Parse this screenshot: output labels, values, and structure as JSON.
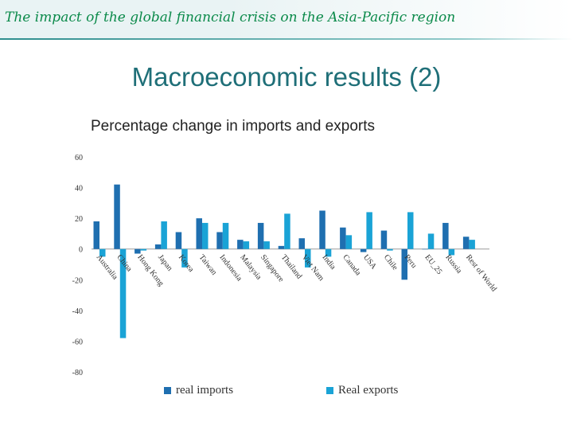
{
  "header": {
    "title": "The impact of the global financial crisis on the Asia-Pacific region"
  },
  "slide": {
    "title": "Macroeconomic results (2)"
  },
  "colors": {
    "real_imports": "#1f6fb0",
    "real_exports": "#1aa3d6",
    "accent": "#1f6f78"
  },
  "chart_data": {
    "type": "bar",
    "title": "Percentage change in imports and exports",
    "xlabel": "",
    "ylabel": "",
    "ylim": [
      -80,
      60
    ],
    "yticks": [
      60,
      40,
      20,
      0,
      -20,
      -40,
      -60,
      -80
    ],
    "grid": false,
    "legend": "bottom",
    "categories": [
      "Australia",
      "China",
      "Hong Kong",
      "Japan",
      "Korea",
      "Taiwan",
      "Indonesia",
      "Malaysia",
      "Singapore",
      "Thailand",
      "Viet Nam",
      "India",
      "Canada",
      "USA",
      "Chile",
      "Peru",
      "EU_25",
      "Russia",
      "Rest of World"
    ],
    "series": [
      {
        "name": "real imports",
        "values": [
          18,
          42,
          -3,
          3,
          11,
          20,
          11,
          6,
          17,
          2,
          7,
          25,
          14,
          -2,
          12,
          -20,
          0,
          17,
          8
        ]
      },
      {
        "name": "Real exports",
        "values": [
          -5,
          -58,
          -1,
          18,
          -12,
          17,
          17,
          5,
          5,
          23,
          -12,
          -5,
          9,
          24,
          -1,
          24,
          10,
          -4,
          6
        ]
      }
    ]
  }
}
